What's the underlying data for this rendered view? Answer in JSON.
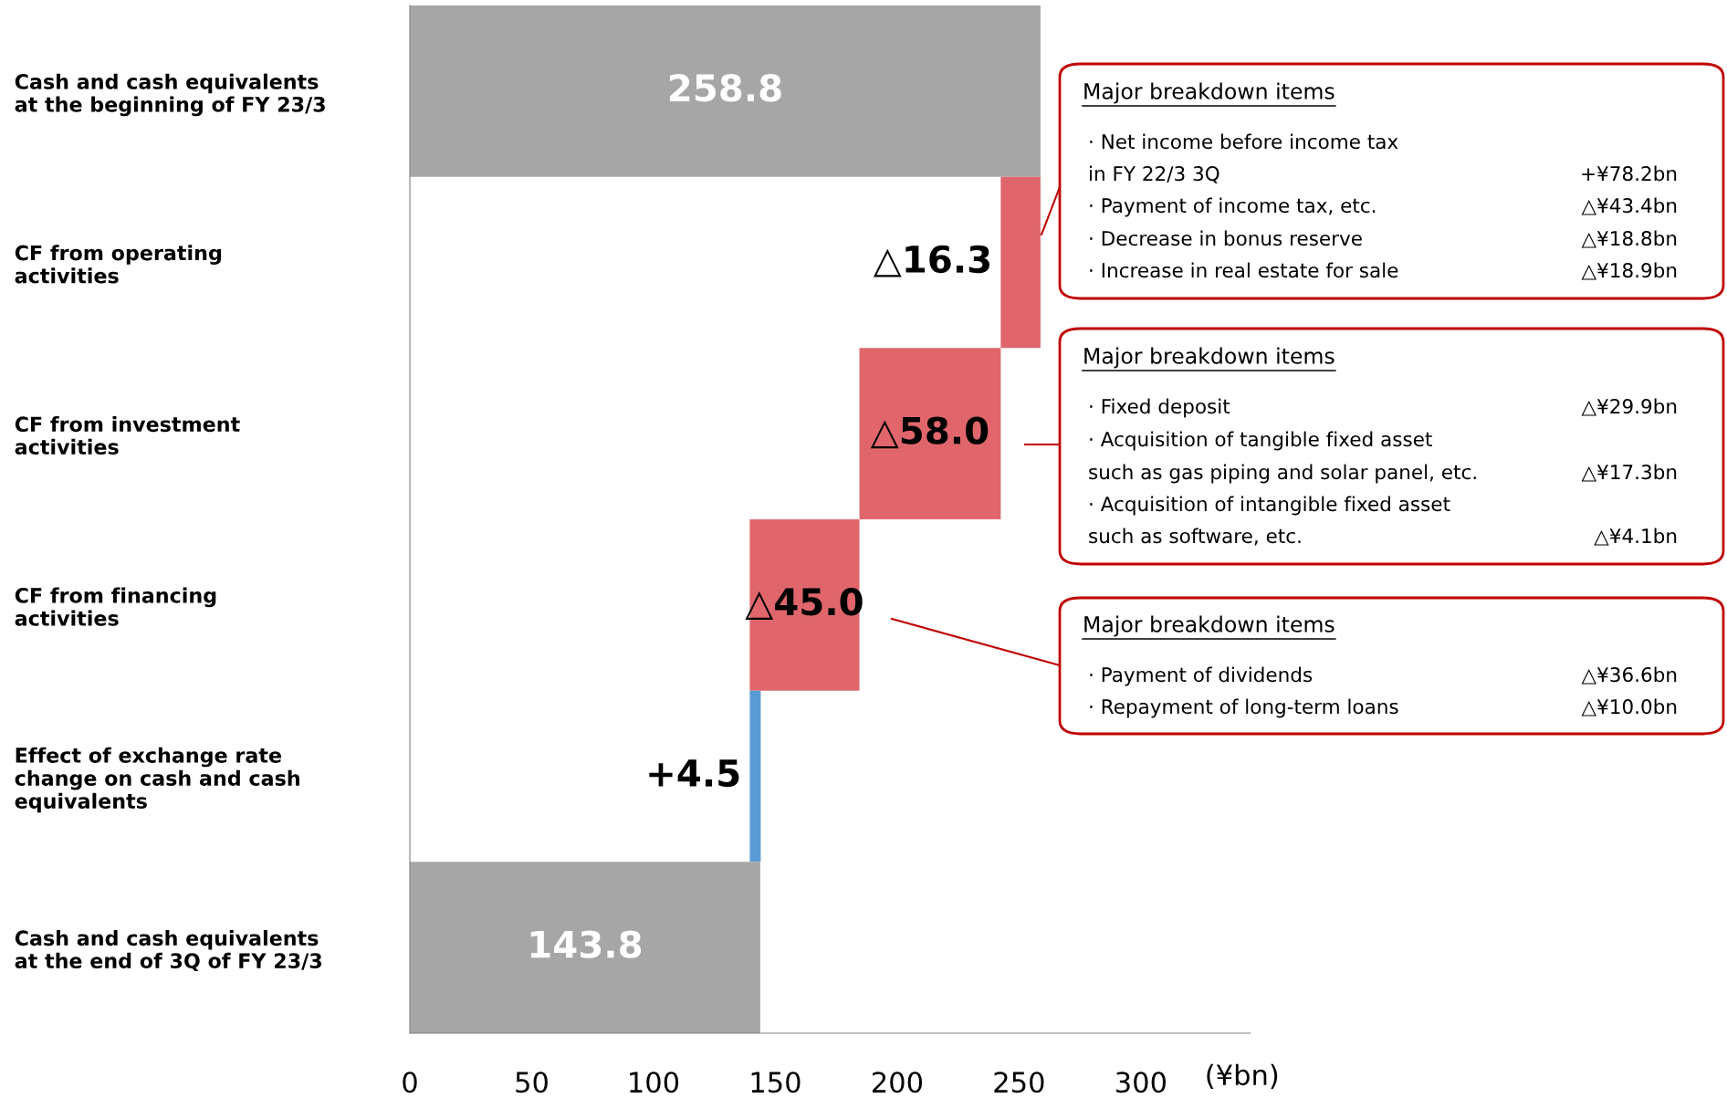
{
  "chart_data": {
    "type": "bar",
    "orientation": "horizontal",
    "categories": [
      "Cash and cash equivalents\nat the beginning of FY 23/3",
      "CF from operating\nactivities",
      "CF from investment\nactivities",
      "CF from financing\nactivities",
      "Effect of exchange rate\nchange on cash and cash\nequivalents",
      "Cash and cash equivalents\nat the end of 3Q of FY 23/3"
    ],
    "values": [
      258.8,
      -16.3,
      -58.0,
      -45.0,
      4.5,
      143.8
    ],
    "base": [
      0,
      258.8,
      242.5,
      184.5,
      139.5,
      0
    ],
    "colors": [
      "#a6a6a6",
      "#e0666b",
      "#e0666b",
      "#e0666b",
      "#5b9bd5",
      "#a6a6a6"
    ],
    "value_labels": [
      "258.8",
      "△16.3",
      "△58.0",
      "△45.0",
      "+4.5",
      "143.8"
    ],
    "xlim": [
      0,
      345
    ],
    "xticks": [
      0,
      50,
      100,
      150,
      200,
      250,
      300
    ],
    "xlabel": "(¥bn)",
    "grid": false,
    "legend": false,
    "annotations": [
      "Major breakdown items",
      "· Net income before income tax",
      "in FY 22/3 3Q\t+¥78.2bn",
      "· Payment of income tax, etc.\t△¥43.4bn",
      "· Decrease in bonus reserve\t△¥18.8bn",
      "· Increase in real estate for sale\t△¥18.9bn",
      "Major breakdown items",
      "· Fixed deposit\t△¥29.9bn",
      "· Acquisition of tangible fixed asset",
      "such as gas piping and solar panel, etc.\t△¥17.3bn",
      "· Acquisition of intangible fixed asset",
      "such as software, etc.\t△¥4.1bn",
      "Major breakdown items",
      "· Payment of dividends\t△¥36.6bn",
      "· Repayment of long-term loans\t△¥10.0bn"
    ]
  }
}
